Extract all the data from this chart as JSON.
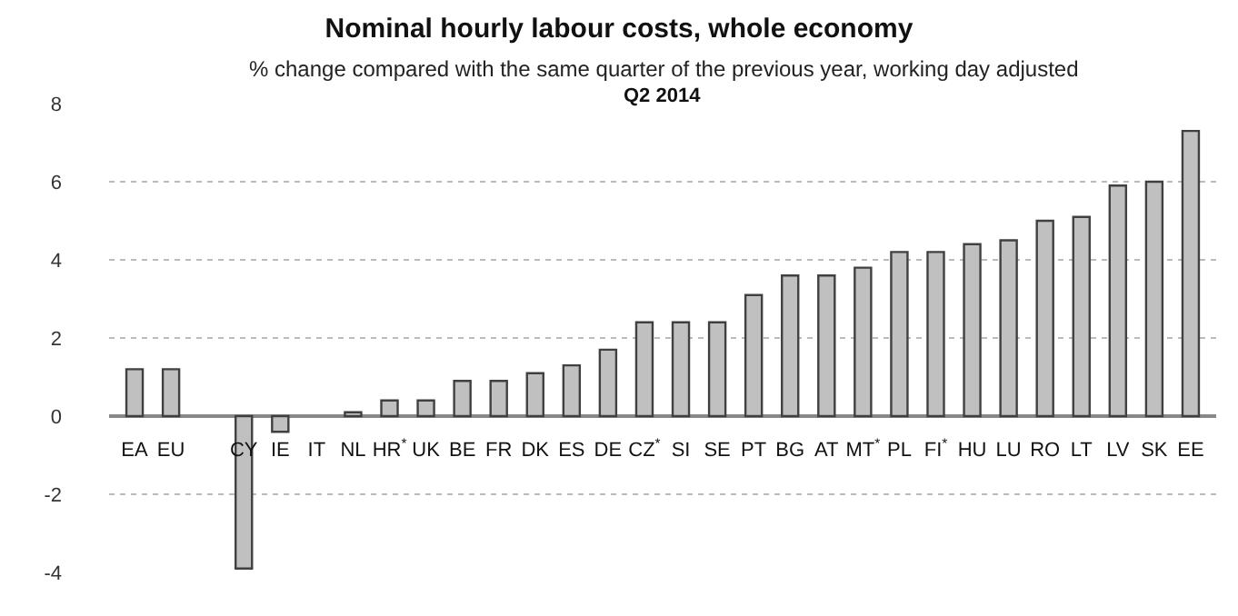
{
  "chart_data": {
    "type": "bar",
    "title": "Nominal hourly labour costs, whole economy",
    "subtitle": "% change compared with the same quarter of the previous year, working day adjusted",
    "annotations": [
      "Q2 2014"
    ],
    "categories": [
      "EA",
      "EU",
      null,
      "CY",
      "IE",
      "IT",
      "NL",
      "HR$^{*}$",
      "UK",
      "BE",
      "FR",
      "DK",
      "ES",
      "DE",
      "CZ$^{*}$",
      "SI",
      "SE",
      "PT",
      "BG",
      "AT",
      "MT$^{*}$",
      "PL",
      "FI$^{*}$",
      "HU",
      "LU",
      "RO",
      "LT",
      "LV",
      "SK",
      "EE"
    ],
    "values": [
      1.2,
      1.2,
      null,
      -3.9,
      -0.4,
      0,
      0.1,
      0.4,
      0.4,
      0.9,
      0.9,
      1.1,
      1.3,
      1.7,
      2.4,
      2.4,
      2.4,
      3.1,
      3.6,
      3.6,
      3.8,
      4.2,
      4.2,
      4.4,
      4.5,
      5.0,
      5.1,
      5.9,
      6.0,
      7.3
    ],
    "color": "#c0c0c0",
    "ylim": [
      -4,
      8
    ],
    "yticks": [
      -4,
      -2,
      0,
      2,
      4,
      6,
      8
    ],
    "grid": "y",
    "legend": false
  }
}
